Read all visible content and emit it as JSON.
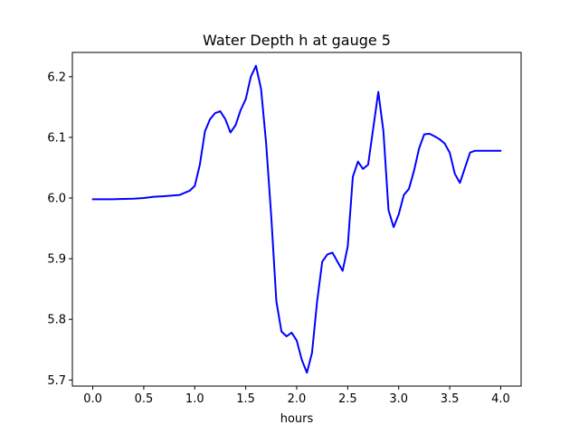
{
  "chart_data": {
    "type": "line",
    "title": "Water Depth h at gauge 5",
    "xlabel": "hours",
    "ylabel": "",
    "xlim": [
      -0.2,
      4.2
    ],
    "ylim": [
      5.69,
      6.24
    ],
    "xticks": [
      0.0,
      0.5,
      1.0,
      1.5,
      2.0,
      2.5,
      3.0,
      3.5,
      4.0
    ],
    "xtick_labels": [
      "0.0",
      "0.5",
      "1.0",
      "1.5",
      "2.0",
      "2.5",
      "3.0",
      "3.5",
      "4.0"
    ],
    "yticks": [
      5.7,
      5.8,
      5.9,
      6.0,
      6.1,
      6.2
    ],
    "ytick_labels": [
      "5.7",
      "5.8",
      "5.9",
      "6.0",
      "6.1",
      "6.2"
    ],
    "grid": false,
    "series": [
      {
        "color": "#0000ff",
        "x": [
          0.0,
          0.2,
          0.4,
          0.5,
          0.6,
          0.7,
          0.85,
          0.95,
          1.0,
          1.05,
          1.1,
          1.15,
          1.2,
          1.25,
          1.3,
          1.35,
          1.4,
          1.45,
          1.5,
          1.55,
          1.6,
          1.65,
          1.7,
          1.75,
          1.8,
          1.85,
          1.9,
          1.95,
          2.0,
          2.05,
          2.1,
          2.15,
          2.2,
          2.25,
          2.3,
          2.35,
          2.4,
          2.45,
          2.5,
          2.55,
          2.6,
          2.65,
          2.7,
          2.75,
          2.8,
          2.85,
          2.9,
          2.95,
          3.0,
          3.05,
          3.1,
          3.15,
          3.2,
          3.25,
          3.3,
          3.35,
          3.4,
          3.45,
          3.5,
          3.55,
          3.6,
          3.65,
          3.7,
          3.75,
          3.8,
          3.85,
          3.9,
          3.95,
          4.0
        ],
        "y": [
          5.998,
          5.998,
          5.999,
          6.0,
          6.002,
          6.003,
          6.005,
          6.012,
          6.02,
          6.055,
          6.11,
          6.13,
          6.14,
          6.143,
          6.13,
          6.108,
          6.12,
          6.145,
          6.163,
          6.2,
          6.218,
          6.18,
          6.09,
          5.97,
          5.83,
          5.78,
          5.772,
          5.778,
          5.765,
          5.733,
          5.712,
          5.745,
          5.83,
          5.895,
          5.907,
          5.91,
          5.895,
          5.88,
          5.92,
          6.035,
          6.06,
          6.048,
          6.055,
          6.115,
          6.175,
          6.11,
          5.98,
          5.952,
          5.973,
          6.005,
          6.015,
          6.045,
          6.082,
          6.105,
          6.106,
          6.102,
          6.097,
          6.09,
          6.075,
          6.04,
          6.025,
          6.05,
          6.075,
          6.078,
          6.078,
          6.078,
          6.078,
          6.078,
          6.078
        ]
      }
    ]
  }
}
